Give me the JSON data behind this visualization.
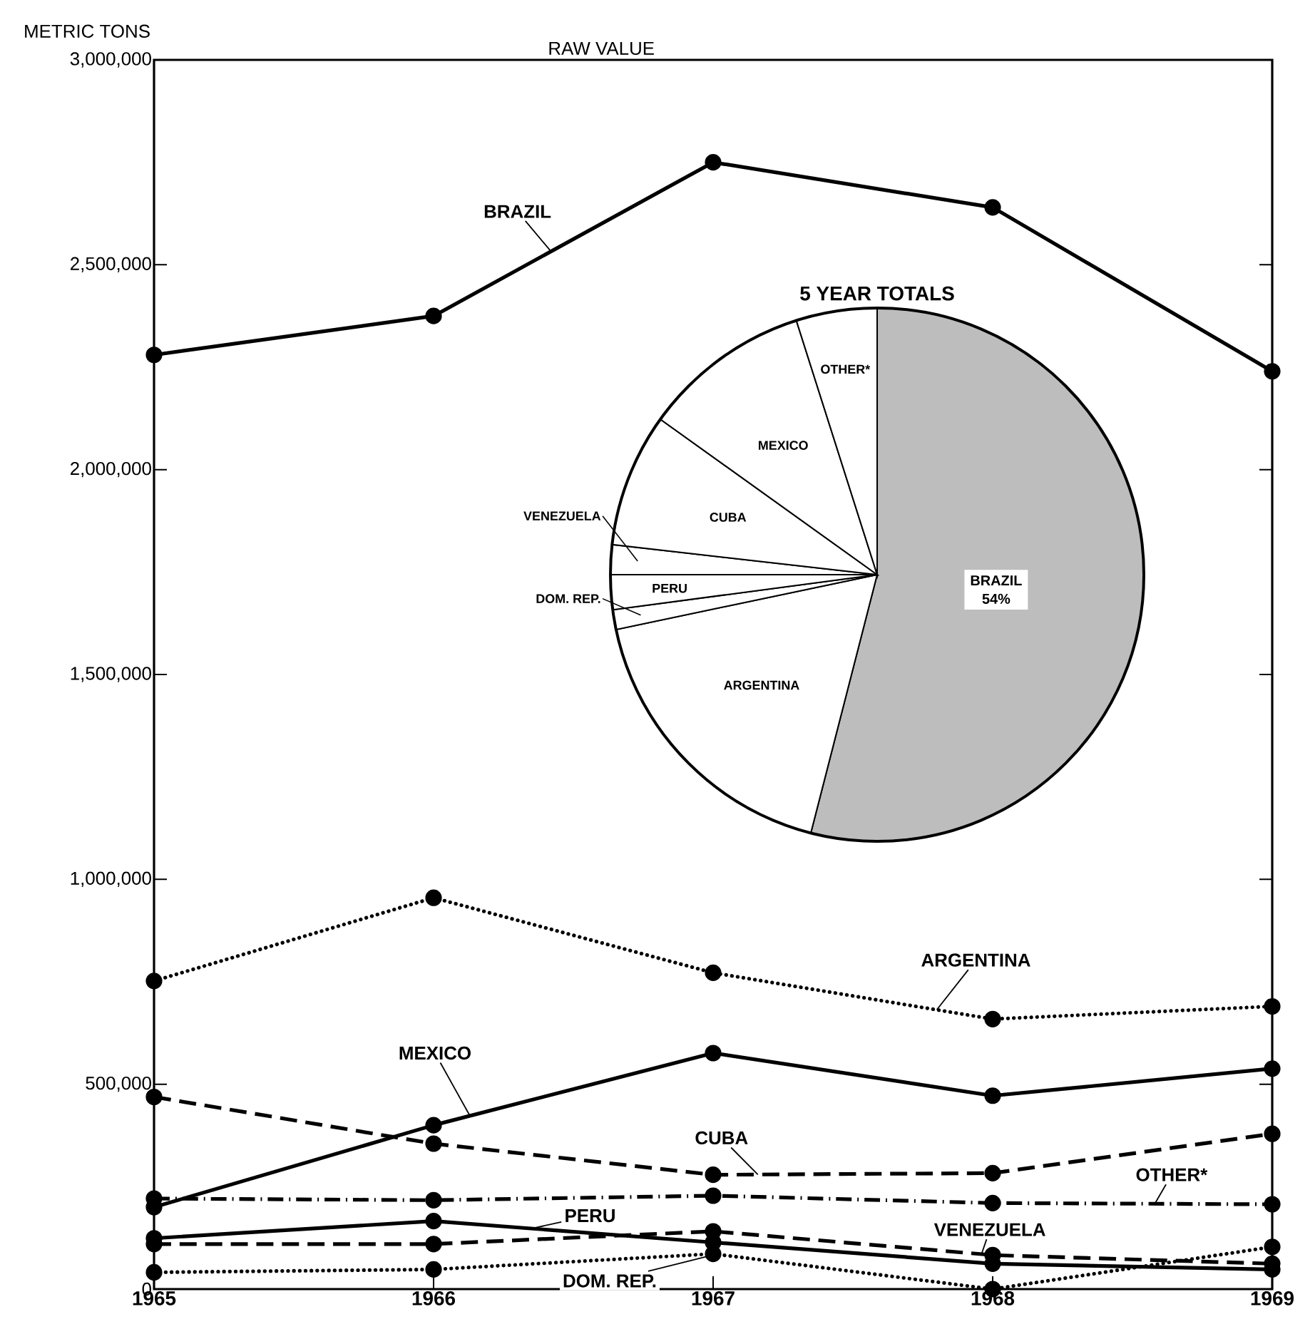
{
  "chart_data": [
    {
      "type": "line",
      "title": "RAW VALUE",
      "ylabel": "METRIC TONS",
      "categories": [
        "1965",
        "1966",
        "1967",
        "1968",
        "1969"
      ],
      "ylim": [
        0,
        3000000
      ],
      "yticks": [
        0,
        {
          "value": 500000,
          "label": "500,000"
        },
        {
          "value": 1000000,
          "label": "1,000,000"
        },
        {
          "value": 1500000,
          "label": "1,500,000"
        },
        {
          "value": 2000000,
          "label": "2,000,000"
        },
        {
          "value": 2500000,
          "label": "2,500,000"
        },
        {
          "value": 3000000,
          "label": "3,000,000"
        }
      ],
      "marker": "circle",
      "series": [
        {
          "name": "BRAZIL",
          "color": "#000000",
          "line_style": "solid",
          "values": [
            2280000,
            2375000,
            2750000,
            2640000,
            2240000
          ]
        },
        {
          "name": "ARGENTINA",
          "color": "#000000",
          "line_style": "dotted",
          "values": [
            752000,
            955000,
            772000,
            659000,
            690000
          ]
        },
        {
          "name": "MEXICO",
          "color": "#000000",
          "line_style": "solid",
          "values": [
            200000,
            400000,
            576000,
            472000,
            538000
          ]
        },
        {
          "name": "CUBA",
          "color": "#000000",
          "line_style": "dashed",
          "values": [
            469000,
            355000,
            279000,
            283000,
            379000
          ]
        },
        {
          "name": "OTHER*",
          "color": "#000000",
          "line_style": "dashdot",
          "values": [
            221000,
            217000,
            228000,
            210000,
            207000
          ]
        },
        {
          "name": "PERU",
          "color": "#000000",
          "line_style": "solid",
          "values": [
            124000,
            166000,
            114000,
            62000,
            48000
          ]
        },
        {
          "name": "VENEZUELA",
          "color": "#000000",
          "line_style": "dashed",
          "values": [
            110000,
            110000,
            141000,
            83000,
            62000
          ]
        },
        {
          "name": "DOM. REP.",
          "color": "#000000",
          "line_style": "dotted",
          "values": [
            41000,
            48000,
            86000,
            0,
            103000
          ]
        }
      ]
    },
    {
      "type": "pie",
      "title": "5 YEAR TOTALS",
      "categories": [
        "BRAZIL",
        "ARGENTINA",
        "DOM. REP.",
        "PERU",
        "VENEZUELA",
        "CUBA",
        "MEXICO",
        "OTHER*"
      ],
      "values": [
        54,
        17.7,
        1.2,
        2.1,
        1.8,
        8.1,
        10.2,
        4.9
      ],
      "colors": [
        "#bdbdbd",
        "#ffffff",
        "#ffffff",
        "#ffffff",
        "#ffffff",
        "#ffffff",
        "#ffffff",
        "#ffffff"
      ],
      "value_labels": [
        "54%",
        null,
        null,
        null,
        null,
        null,
        null,
        null
      ]
    }
  ]
}
